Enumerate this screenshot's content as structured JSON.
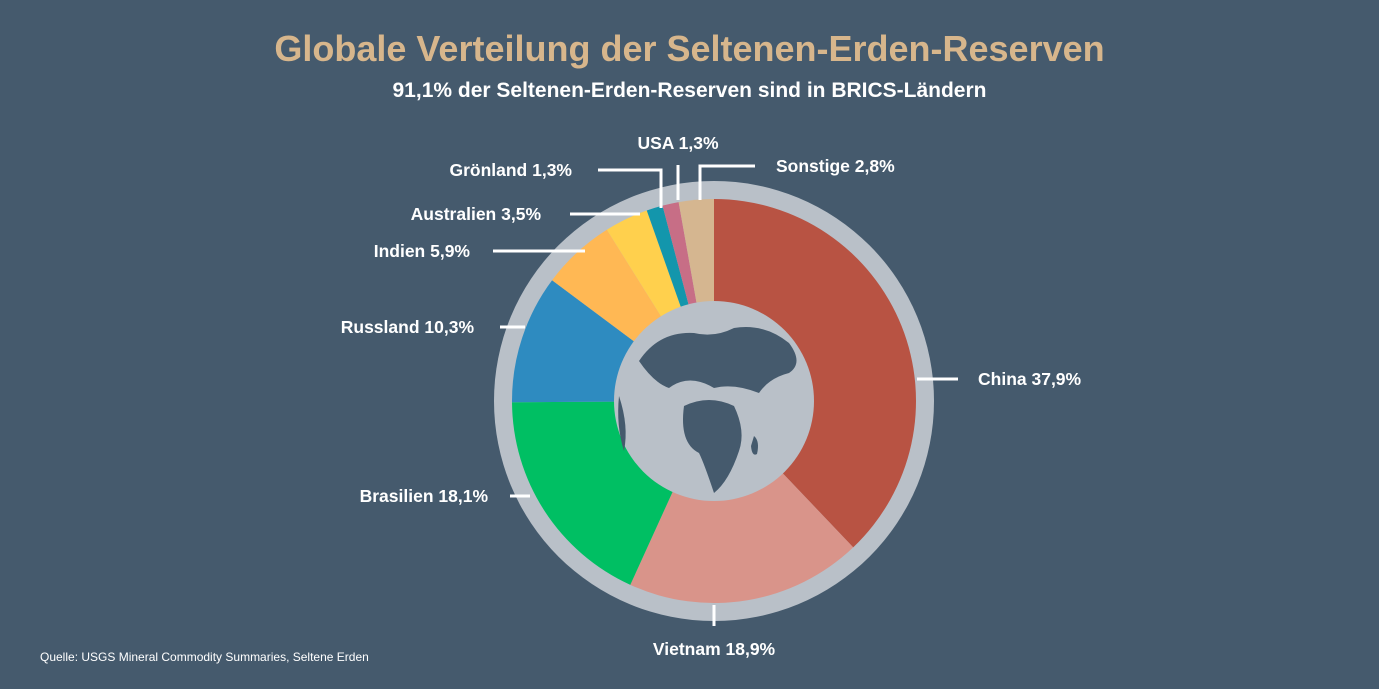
{
  "chart_data": {
    "type": "pie",
    "title": "Globale Verteilung der Seltenen-Erden-Reserven",
    "subtitle": "91,1% der Seltenen-Erden-Reserven sind in BRICS-Ländern",
    "source": "Quelle: USGS Mineral Commodity Summaries, Seltene Erden",
    "slices": [
      {
        "name": "China",
        "value": 37.9,
        "label": "China 37,9%",
        "color": "#b85343"
      },
      {
        "name": "Vietnam",
        "value": 18.9,
        "label": "Vietnam 18,9%",
        "color": "#d9948a"
      },
      {
        "name": "Brasilien",
        "value": 18.1,
        "label": "Brasilien 18,1%",
        "color": "#00bf63"
      },
      {
        "name": "Russland",
        "value": 10.3,
        "label": "Russland 10,3%",
        "color": "#2e8bc0"
      },
      {
        "name": "Indien",
        "value": 5.9,
        "label": "Indien 5,9%",
        "color": "#ffb854"
      },
      {
        "name": "Australien",
        "value": 3.5,
        "label": "Australien 3,5%",
        "color": "#ffd04d"
      },
      {
        "name": "Grönland",
        "value": 1.3,
        "label": "Grönland 1,3%",
        "color": "#1396ac"
      },
      {
        "name": "USA",
        "value": 1.3,
        "label": "USA 1,3%",
        "color": "#c76e86"
      },
      {
        "name": "Sonstige",
        "value": 2.8,
        "label": "Sonstige 2,8%",
        "color": "#d5b690"
      }
    ]
  }
}
